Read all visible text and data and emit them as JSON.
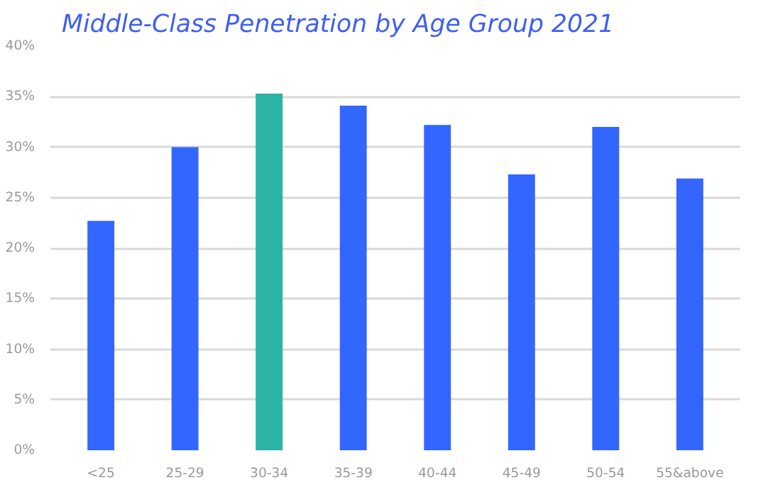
{
  "chart_data": {
    "type": "bar",
    "title": "Middle-Class Penetration by Age Group 2021",
    "categories": [
      "<25",
      "25-29",
      "30-34",
      "35-39",
      "40-44",
      "45-49",
      "50-54",
      "55&above"
    ],
    "values": [
      22.7,
      30.0,
      35.3,
      34.1,
      32.2,
      27.3,
      32.0,
      26.9
    ],
    "colors": [
      "#3366ff",
      "#3366ff",
      "#2bb3a6",
      "#3366ff",
      "#3366ff",
      "#3366ff",
      "#3366ff",
      "#3366ff"
    ],
    "ylim": [
      0,
      40
    ],
    "yticks": [
      {
        "value": 0,
        "label": "0%"
      },
      {
        "value": 5,
        "label": "5%"
      },
      {
        "value": 10,
        "label": "10%"
      },
      {
        "value": 15,
        "label": "15%"
      },
      {
        "value": 20,
        "label": "20%"
      },
      {
        "value": 25,
        "label": "25%"
      },
      {
        "value": 30,
        "label": "30%"
      },
      {
        "value": 35,
        "label": "35%"
      },
      {
        "value": 40,
        "label": "40%"
      }
    ],
    "grid": "y"
  }
}
